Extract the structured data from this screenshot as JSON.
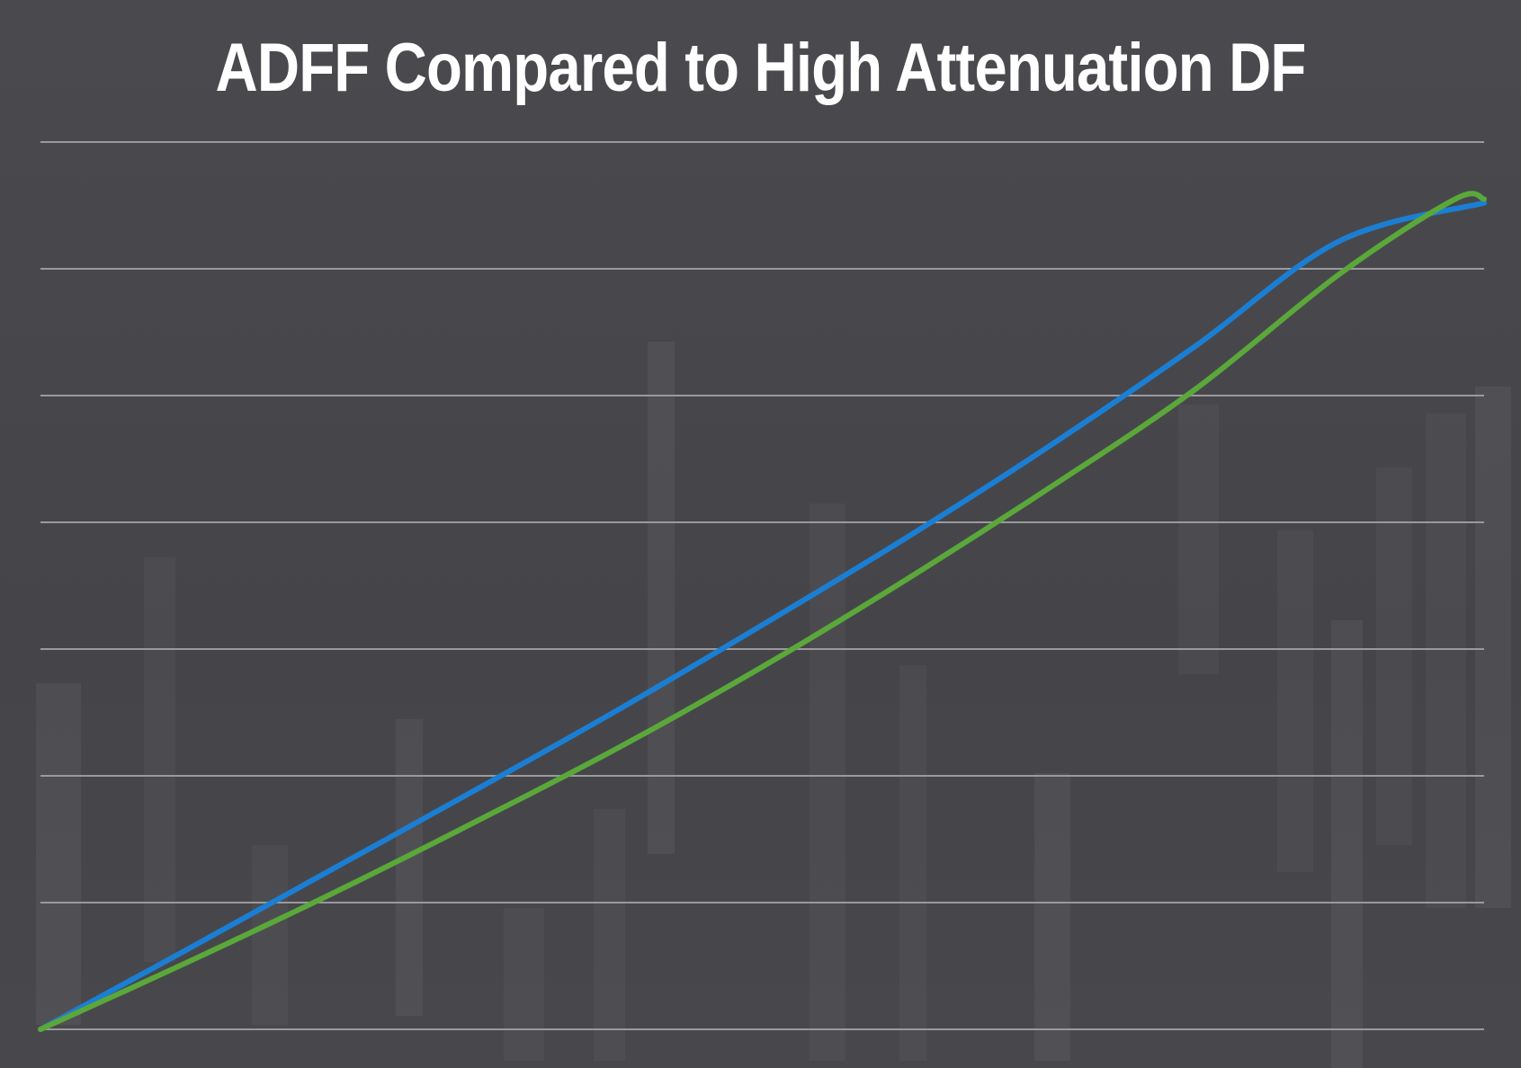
{
  "chart_data": {
    "type": "line",
    "title": "ADFF Compared to High Attenuation DF",
    "xlabel": "",
    "ylabel": "",
    "xlim": [
      0,
      10
    ],
    "ylim": [
      0,
      7
    ],
    "grid": true,
    "legend": "none",
    "series": [
      {
        "color": "#1a7fd4",
        "x": [
          0,
          1,
          2,
          3,
          4,
          5,
          6,
          7,
          8,
          9,
          10
        ],
        "y": [
          0,
          0.62,
          1.25,
          1.88,
          2.52,
          3.19,
          3.88,
          4.61,
          5.39,
          6.22,
          6.52
        ]
      },
      {
        "color": "#5aa83a",
        "x": [
          0,
          1,
          2,
          3,
          4,
          5,
          6,
          7,
          8,
          9,
          9.8,
          10
        ],
        "y": [
          0,
          0.52,
          1.06,
          1.63,
          2.22,
          2.86,
          3.55,
          4.28,
          5.05,
          5.96,
          6.55,
          6.55
        ]
      }
    ],
    "colors": {
      "background": "#47474b",
      "gridline": "#9a9a9e",
      "title": "#ffffff"
    }
  }
}
